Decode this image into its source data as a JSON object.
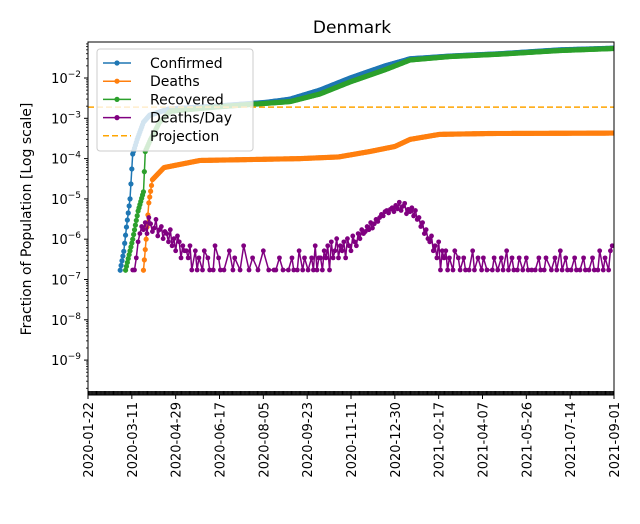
{
  "chart_data": {
    "type": "line",
    "title": "Denmark",
    "xlabel": "",
    "ylabel": "Fraction of Population [Log scale]",
    "yscale": "log",
    "ylim": [
      1.3e-10,
      0.08
    ],
    "x_start_date": "2020-01-22",
    "x_end_day": 588,
    "xtick_labels": [
      "2020-01-22",
      "2020-03-11",
      "2020-04-29",
      "2020-06-17",
      "2020-08-05",
      "2020-09-23",
      "2020-11-11",
      "2020-12-30",
      "2021-02-17",
      "2021-04-07",
      "2021-05-26",
      "2021-07-14",
      "2021-09-01"
    ],
    "xtick_step_days": 49,
    "ytick_exponents": [
      -2,
      -3,
      -4,
      -5,
      -6,
      -7,
      -8,
      -9
    ],
    "ytick_base": "10",
    "legend_position": "top-left",
    "series": [
      {
        "name": "Confirmed",
        "color": "#1f77b4",
        "points_day_value": [
          [
            36,
            1.7e-07
          ],
          [
            40,
            5e-07
          ],
          [
            43,
            2e-06
          ],
          [
            47,
            1e-05
          ],
          [
            50,
            0.00013
          ],
          [
            55,
            0.0003
          ],
          [
            62,
            0.0008
          ],
          [
            69,
            0.0012
          ],
          [
            90,
            0.0017
          ],
          [
            142,
            0.002
          ],
          [
            200,
            0.0025
          ],
          [
            226,
            0.003
          ],
          [
            259,
            0.005
          ],
          [
            293,
            0.01
          ],
          [
            332,
            0.02
          ],
          [
            360,
            0.03
          ],
          [
            404,
            0.035
          ],
          [
            460,
            0.04
          ],
          [
            527,
            0.05
          ],
          [
            588,
            0.055
          ]
        ]
      },
      {
        "name": "Deaths",
        "color": "#ff7f0e",
        "points_day_value": [
          [
            62,
            1.7e-07
          ],
          [
            65,
            1e-06
          ],
          [
            68,
            8e-06
          ],
          [
            72,
            3e-05
          ],
          [
            85,
            6e-05
          ],
          [
            125,
            9e-05
          ],
          [
            237,
            0.0001
          ],
          [
            280,
            0.00011
          ],
          [
            315,
            0.00015
          ],
          [
            343,
            0.0002
          ],
          [
            360,
            0.0003
          ],
          [
            393,
            0.0004
          ],
          [
            450,
            0.00042
          ],
          [
            588,
            0.00043
          ]
        ]
      },
      {
        "name": "Recovered",
        "color": "#2ca02c",
        "points_day_value": [
          [
            42,
            1.7e-07
          ],
          [
            50,
            1e-06
          ],
          [
            56,
            5e-06
          ],
          [
            62,
            1.5e-05
          ],
          [
            64,
            0.00015
          ],
          [
            70,
            0.0003
          ],
          [
            80,
            0.0008
          ],
          [
            92,
            0.0015
          ],
          [
            142,
            0.0019
          ],
          [
            226,
            0.0026
          ],
          [
            259,
            0.004
          ],
          [
            293,
            0.008
          ],
          [
            332,
            0.016
          ],
          [
            360,
            0.028
          ],
          [
            404,
            0.034
          ],
          [
            460,
            0.039
          ],
          [
            527,
            0.048
          ],
          [
            588,
            0.054
          ]
        ]
      },
      {
        "name": "Deaths/Day",
        "color": "#800080",
        "per_death_fraction": 1.72e-07,
        "start_day": 50,
        "step_days": 2,
        "deaths_counts": [
          1,
          1,
          2,
          5,
          8,
          12,
          10,
          15,
          8,
          20,
          14,
          9,
          11,
          18,
          7,
          10,
          12,
          6,
          9,
          8,
          5,
          10,
          4,
          6,
          3,
          7,
          5,
          2,
          4,
          3,
          3,
          2,
          4,
          1,
          0,
          3,
          1,
          2,
          0,
          1,
          3,
          0,
          2,
          1,
          0,
          1,
          4,
          0,
          2,
          1,
          0,
          1,
          0,
          0,
          3,
          0,
          1,
          2,
          0,
          0,
          1,
          0,
          4,
          0,
          0,
          1,
          0,
          2,
          0,
          0,
          1,
          0,
          0,
          3,
          0,
          0,
          1,
          0,
          0,
          1,
          1,
          0,
          2,
          0,
          1,
          0,
          0,
          1,
          0,
          2,
          1,
          0,
          1,
          3,
          0,
          1,
          2,
          0,
          1,
          0,
          2,
          1,
          4,
          1,
          2,
          2,
          1,
          3,
          2,
          4,
          1,
          5,
          2,
          3,
          6,
          2,
          4,
          3,
          5,
          2,
          6,
          4,
          3,
          7,
          5,
          4,
          8,
          6,
          10,
          8,
          9,
          12,
          10,
          15,
          11,
          14,
          18,
          16,
          20,
          24,
          22,
          28,
          30,
          26,
          32,
          35,
          28,
          40,
          33,
          48,
          30,
          38,
          45,
          25,
          32,
          28,
          35,
          22,
          30,
          18,
          20,
          12,
          15,
          8,
          10,
          6,
          5,
          7,
          3,
          4,
          2,
          5,
          1,
          3,
          2,
          3,
          1,
          2,
          0,
          1,
          3,
          0,
          2,
          1,
          0,
          2,
          1,
          0,
          1,
          0,
          3,
          1,
          0,
          2,
          0,
          1,
          2,
          0,
          1,
          0,
          0,
          1,
          2,
          0,
          1,
          0,
          2,
          1,
          0,
          3,
          1,
          0,
          2,
          1,
          0,
          1,
          2,
          0,
          1,
          0,
          2,
          1,
          0,
          1,
          0,
          1,
          0,
          2,
          1,
          0,
          1,
          2,
          0,
          0,
          1,
          0,
          2,
          1,
          0,
          3,
          1,
          0,
          2,
          1,
          0,
          1,
          0,
          2,
          1,
          0,
          1,
          0,
          2,
          1,
          0,
          1,
          0,
          2,
          1,
          0,
          1,
          3,
          0,
          1,
          2,
          0,
          1,
          3,
          4
        ]
      },
      {
        "name": "Projection",
        "color": "#ffa500",
        "style": "dashed",
        "value": 0.0019
      }
    ]
  }
}
